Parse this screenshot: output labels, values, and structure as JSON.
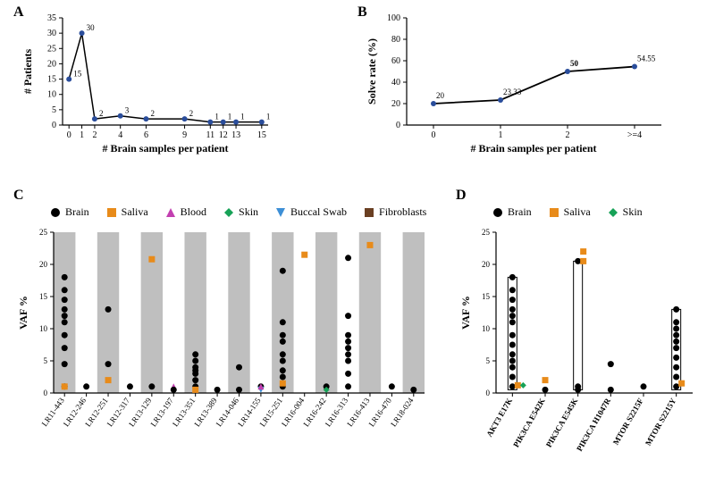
{
  "panelA": {
    "label": "A",
    "type": "line",
    "xlabel": "# Brain samples per patient",
    "ylabel": "# Patients",
    "xlim": [
      -0.5,
      15.5
    ],
    "ylim": [
      0,
      35
    ],
    "ytick_step": 5,
    "x_values": [
      0,
      1,
      2,
      4,
      6,
      9,
      11,
      12,
      13,
      15
    ],
    "y_values": [
      15,
      30,
      2,
      3,
      2,
      2,
      1,
      1,
      1,
      1
    ],
    "point_labels": [
      "15",
      "30",
      "2",
      "3",
      "2",
      "2",
      "1",
      "1",
      "1",
      "1"
    ],
    "line_color": "#000000",
    "marker_color": "#2a4d9b",
    "marker_size": 3,
    "label_fontsize": 12,
    "tick_fontsize": 10,
    "datalabel_fontsize": 9,
    "background": "#ffffff"
  },
  "panelB": {
    "label": "B",
    "type": "line",
    "xlabel": "# Brain samples per patient",
    "ylabel": "Solve rate (%)",
    "xlim": [
      -0.3,
      3.3
    ],
    "ylim": [
      0,
      100
    ],
    "ytick_step": 20,
    "x_categories": [
      "0",
      "1",
      "2",
      ">=4"
    ],
    "y_values": [
      20,
      23.33,
      50,
      54.55
    ],
    "point_labels": [
      "20",
      "23.33",
      "50",
      "54.55"
    ],
    "bold_labels": [
      false,
      false,
      true,
      false
    ],
    "line_color": "#000000",
    "marker_color": "#2a4d9b",
    "marker_size": 3,
    "label_fontsize": 12,
    "tick_fontsize": 10,
    "datalabel_fontsize": 9,
    "background": "#ffffff"
  },
  "panelC": {
    "label": "C",
    "type": "scatter",
    "xlabel": "",
    "ylabel": "VAF %",
    "ylim": [
      0,
      25
    ],
    "ytick_step": 5,
    "categories": [
      "LR11-443",
      "LR12-246",
      "LR12-251",
      "LR12-317",
      "LR13-129",
      "LR13-197",
      "LR13-351",
      "LR13-389",
      "LR14-046",
      "LR14-155",
      "LR15-251",
      "LR16-004",
      "LR16-242",
      "LR16-313",
      "LR16-413",
      "LR16-470",
      "LR18-024"
    ],
    "band_color": "#bfbfbf",
    "background": "#ffffff",
    "legend": [
      {
        "name": "Brain",
        "shape": "circle",
        "fill": "#000000"
      },
      {
        "name": "Saliva",
        "shape": "square",
        "fill": "#e88b1a"
      },
      {
        "name": "Blood",
        "shape": "triangle",
        "fill": "#c23fb0"
      },
      {
        "name": "Skin",
        "shape": "diamond",
        "fill": "#17a257"
      },
      {
        "name": "Buccal Swab",
        "shape": "invtriangle",
        "fill": "#3d8fd6"
      },
      {
        "name": "Fibroblasts",
        "shape": "square",
        "fill": "#6a3f22"
      }
    ],
    "points": [
      {
        "cat": 0,
        "y": 18,
        "series": "Brain"
      },
      {
        "cat": 0,
        "y": 16,
        "series": "Brain"
      },
      {
        "cat": 0,
        "y": 14.5,
        "series": "Brain"
      },
      {
        "cat": 0,
        "y": 13,
        "series": "Brain"
      },
      {
        "cat": 0,
        "y": 12,
        "series": "Brain"
      },
      {
        "cat": 0,
        "y": 11,
        "series": "Brain"
      },
      {
        "cat": 0,
        "y": 9,
        "series": "Brain"
      },
      {
        "cat": 0,
        "y": 7,
        "series": "Brain"
      },
      {
        "cat": 0,
        "y": 4.5,
        "series": "Brain"
      },
      {
        "cat": 0,
        "y": 1,
        "series": "Brain"
      },
      {
        "cat": 0,
        "y": 1,
        "series": "Skin"
      },
      {
        "cat": 0,
        "y": 1,
        "series": "Saliva"
      },
      {
        "cat": 1,
        "y": 1,
        "series": "Brain"
      },
      {
        "cat": 2,
        "y": 13,
        "series": "Brain"
      },
      {
        "cat": 2,
        "y": 4.5,
        "series": "Brain"
      },
      {
        "cat": 2,
        "y": 2,
        "series": "Saliva"
      },
      {
        "cat": 3,
        "y": 1,
        "series": "Brain"
      },
      {
        "cat": 4,
        "y": 20.8,
        "series": "Saliva"
      },
      {
        "cat": 4,
        "y": 1,
        "series": "Brain"
      },
      {
        "cat": 5,
        "y": 1,
        "series": "Blood"
      },
      {
        "cat": 5,
        "y": 0.5,
        "series": "Brain"
      },
      {
        "cat": 6,
        "y": 6,
        "series": "Brain"
      },
      {
        "cat": 6,
        "y": 5,
        "series": "Brain"
      },
      {
        "cat": 6,
        "y": 4,
        "series": "Brain"
      },
      {
        "cat": 6,
        "y": 3.5,
        "series": "Brain"
      },
      {
        "cat": 6,
        "y": 3,
        "series": "Brain"
      },
      {
        "cat": 6,
        "y": 2,
        "series": "Brain"
      },
      {
        "cat": 6,
        "y": 1,
        "series": "Brain"
      },
      {
        "cat": 6,
        "y": 0.5,
        "series": "Saliva"
      },
      {
        "cat": 7,
        "y": 0.5,
        "series": "Brain"
      },
      {
        "cat": 8,
        "y": 4,
        "series": "Brain"
      },
      {
        "cat": 8,
        "y": 0.5,
        "series": "Brain"
      },
      {
        "cat": 9,
        "y": 1,
        "series": "Brain"
      },
      {
        "cat": 9,
        "y": 0.5,
        "series": "Buccal Swab"
      },
      {
        "cat": 9,
        "y": 1,
        "series": "Blood"
      },
      {
        "cat": 10,
        "y": 19,
        "series": "Brain"
      },
      {
        "cat": 10,
        "y": 11,
        "series": "Brain"
      },
      {
        "cat": 10,
        "y": 9,
        "series": "Brain"
      },
      {
        "cat": 10,
        "y": 8,
        "series": "Brain"
      },
      {
        "cat": 10,
        "y": 6,
        "series": "Brain"
      },
      {
        "cat": 10,
        "y": 5,
        "series": "Brain"
      },
      {
        "cat": 10,
        "y": 3.5,
        "series": "Brain"
      },
      {
        "cat": 10,
        "y": 2.5,
        "series": "Brain"
      },
      {
        "cat": 10,
        "y": 1,
        "series": "Brain"
      },
      {
        "cat": 10,
        "y": 1.5,
        "series": "Saliva"
      },
      {
        "cat": 11,
        "y": 21.5,
        "series": "Saliva"
      },
      {
        "cat": 12,
        "y": 1,
        "series": "Brain"
      },
      {
        "cat": 12,
        "y": 0.5,
        "series": "Skin"
      },
      {
        "cat": 13,
        "y": 21,
        "series": "Brain"
      },
      {
        "cat": 13,
        "y": 12,
        "series": "Brain"
      },
      {
        "cat": 13,
        "y": 9,
        "series": "Brain"
      },
      {
        "cat": 13,
        "y": 8,
        "series": "Brain"
      },
      {
        "cat": 13,
        "y": 7,
        "series": "Brain"
      },
      {
        "cat": 13,
        "y": 6,
        "series": "Brain"
      },
      {
        "cat": 13,
        "y": 5,
        "series": "Brain"
      },
      {
        "cat": 13,
        "y": 3,
        "series": "Brain"
      },
      {
        "cat": 13,
        "y": 1,
        "series": "Brain"
      },
      {
        "cat": 14,
        "y": 23,
        "series": "Saliva"
      },
      {
        "cat": 15,
        "y": 1,
        "series": "Brain"
      },
      {
        "cat": 16,
        "y": 0.5,
        "series": "Brain"
      }
    ],
    "label_fontsize": 12,
    "tick_fontsize": 9
  },
  "panelD": {
    "label": "D",
    "type": "scatter",
    "xlabel": "",
    "ylabel": "VAF %",
    "ylim": [
      0,
      25
    ],
    "ytick_step": 5,
    "categories": [
      "AKT3 E17K",
      "PIK3CA E542K",
      "PIK3CA E545K",
      "PIK3CA H1047R",
      "MTOR S2215F",
      "MTOR S2215Y"
    ],
    "background": "#ffffff",
    "legend": [
      {
        "name": "Brain",
        "shape": "circle",
        "fill": "#000000"
      },
      {
        "name": "Saliva",
        "shape": "square",
        "fill": "#e88b1a"
      },
      {
        "name": "Skin",
        "shape": "diamond",
        "fill": "#17a257"
      }
    ],
    "box_ranges": [
      {
        "cat": 0,
        "low": 0.5,
        "high": 18
      },
      {
        "cat": 2,
        "low": 0.5,
        "high": 20.5
      },
      {
        "cat": 5,
        "low": 0.5,
        "high": 13
      }
    ],
    "points": [
      {
        "cat": 0,
        "y": 18,
        "series": "Brain"
      },
      {
        "cat": 0,
        "y": 16,
        "series": "Brain"
      },
      {
        "cat": 0,
        "y": 14.5,
        "series": "Brain"
      },
      {
        "cat": 0,
        "y": 13,
        "series": "Brain"
      },
      {
        "cat": 0,
        "y": 12,
        "series": "Brain"
      },
      {
        "cat": 0,
        "y": 11,
        "series": "Brain"
      },
      {
        "cat": 0,
        "y": 9,
        "series": "Brain"
      },
      {
        "cat": 0,
        "y": 7.5,
        "series": "Brain"
      },
      {
        "cat": 0,
        "y": 6,
        "series": "Brain"
      },
      {
        "cat": 0,
        "y": 5,
        "series": "Brain"
      },
      {
        "cat": 0,
        "y": 4,
        "series": "Brain"
      },
      {
        "cat": 0,
        "y": 2.5,
        "series": "Brain"
      },
      {
        "cat": 0,
        "y": 1,
        "series": "Brain"
      },
      {
        "cat": 0,
        "y": 1.2,
        "series": "Saliva",
        "dx": 6
      },
      {
        "cat": 0,
        "y": 1.2,
        "series": "Skin",
        "dx": 12
      },
      {
        "cat": 1,
        "y": 2,
        "series": "Saliva"
      },
      {
        "cat": 1,
        "y": 0.5,
        "series": "Brain"
      },
      {
        "cat": 2,
        "y": 20.5,
        "series": "Brain"
      },
      {
        "cat": 2,
        "y": 22,
        "series": "Saliva",
        "dx": 6
      },
      {
        "cat": 2,
        "y": 20.5,
        "series": "Saliva",
        "dx": 6
      },
      {
        "cat": 2,
        "y": 1,
        "series": "Brain"
      },
      {
        "cat": 2,
        "y": 0.5,
        "series": "Brain"
      },
      {
        "cat": 3,
        "y": 4.5,
        "series": "Brain"
      },
      {
        "cat": 3,
        "y": 0.5,
        "series": "Brain"
      },
      {
        "cat": 4,
        "y": 1,
        "series": "Brain"
      },
      {
        "cat": 5,
        "y": 13,
        "series": "Brain"
      },
      {
        "cat": 5,
        "y": 11,
        "series": "Brain"
      },
      {
        "cat": 5,
        "y": 10,
        "series": "Brain"
      },
      {
        "cat": 5,
        "y": 9,
        "series": "Brain"
      },
      {
        "cat": 5,
        "y": 8,
        "series": "Brain"
      },
      {
        "cat": 5,
        "y": 7,
        "series": "Brain"
      },
      {
        "cat": 5,
        "y": 5.5,
        "series": "Brain"
      },
      {
        "cat": 5,
        "y": 4,
        "series": "Brain"
      },
      {
        "cat": 5,
        "y": 2.5,
        "series": "Brain"
      },
      {
        "cat": 5,
        "y": 1,
        "series": "Brain"
      },
      {
        "cat": 5,
        "y": 1.5,
        "series": "Saliva",
        "dx": 6
      }
    ],
    "label_fontsize": 12,
    "tick_fontsize": 9
  }
}
